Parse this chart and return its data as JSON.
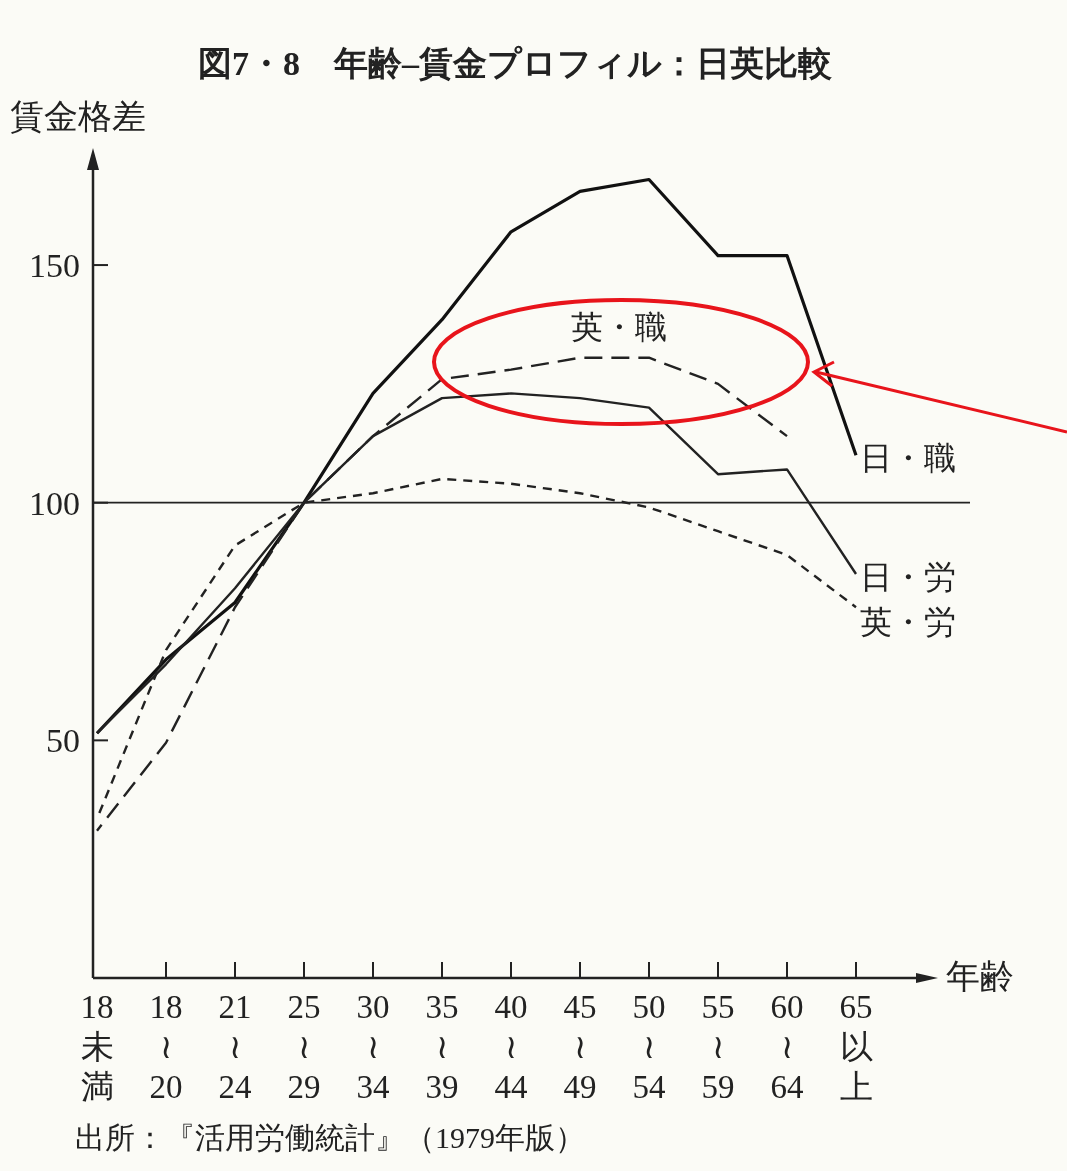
{
  "chart_data": {
    "type": "line",
    "title": "図7・8　年齢–賃金プロフィル：日英比較",
    "ylabel": "賃金格差",
    "xlabel": "年齢",
    "categories": [
      "18未満",
      "18≀20",
      "21≀24",
      "25≀29",
      "30≀34",
      "35≀39",
      "40≀44",
      "45≀49",
      "50≀54",
      "55≀59",
      "60≀64",
      "65以上"
    ],
    "series": [
      {
        "name": "日・職",
        "color": "#111111",
        "line_style": "solid",
        "values": [
          51.5,
          67,
          79,
          100,
          123,
          138.5,
          157,
          165.5,
          168,
          152,
          152,
          110
        ]
      },
      {
        "name": "日・労",
        "color": "#222222",
        "line_style": "solid",
        "values": [
          51.5,
          66,
          82,
          100,
          114,
          122,
          123,
          122,
          120,
          106,
          107,
          85
        ]
      },
      {
        "name": "英・職",
        "color": "#222222",
        "line_style": "dashed",
        "values": [
          31,
          49.5,
          78,
          100,
          114,
          126,
          128,
          130.5,
          130.5,
          125,
          114,
          null
        ]
      },
      {
        "name": "英・労",
        "color": "#222222",
        "line_style": "dotted",
        "values": [
          33.5,
          69,
          91,
          100,
          102,
          105,
          104,
          102,
          99,
          94,
          89,
          78
        ]
      }
    ],
    "ylim": [
      0,
      170
    ],
    "yticks": [
      50,
      100,
      150
    ],
    "grid": false,
    "legend": false,
    "marker": "none",
    "ref_lines": [
      {
        "axis": "y",
        "value": 100,
        "color": "#222222",
        "line_style": "solid"
      }
    ],
    "annotations": [
      "出所：『活用労働統計』（1979年版）"
    ]
  }
}
